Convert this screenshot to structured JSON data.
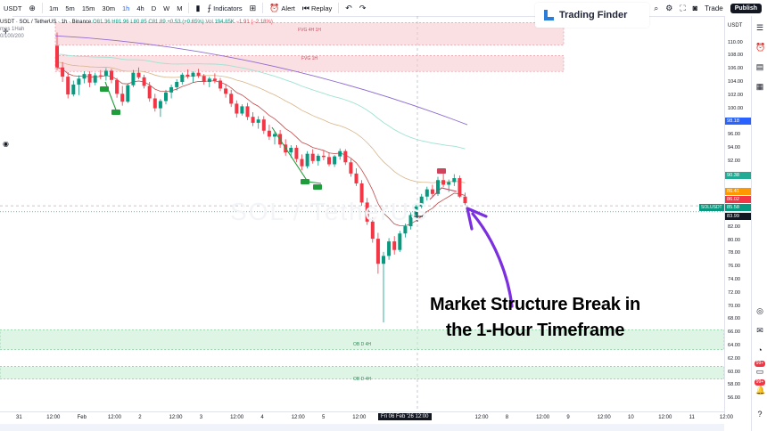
{
  "topbar": {
    "intervals": [
      "1m",
      "5m",
      "15m",
      "30m",
      "1h",
      "4h",
      "D",
      "W",
      "M"
    ],
    "indicators_label": "Indicators",
    "alert_label": "Alert",
    "replay_label": "Replay",
    "trade_label": "Trade",
    "publish_label": "Publish",
    "symbol_short": "USDT"
  },
  "brand": {
    "name": "Trading Finder"
  },
  "legend": {
    "symbol": "USDT · SOL / TetherUS · 1h · Binance",
    "open": "O81.36",
    "high": "H81.96",
    "low": "L80.85",
    "close": "C81.89",
    "change": "+0.53 (+0.65%)",
    "volume_label": "Vol",
    "volume_value": "194.85K",
    "volume_change": "−1.91 (−2.18%)",
    "sub1": "mes 1Hah",
    "sub2": "0/100/200"
  },
  "watermark": "SOL / TetherUS",
  "zones": [
    {
      "label": "FVG 4H 1H",
      "kind": "fvg"
    },
    {
      "label": "FVG 1H",
      "kind": "fvg"
    },
    {
      "label": "OB D 4H",
      "kind": "ob"
    },
    {
      "label": "OB D 4H",
      "kind": "ob"
    }
  ],
  "price_axis": {
    "ticks": [
      "110.00",
      "108.00",
      "106.00",
      "104.00",
      "102.00",
      "100.00",
      "96.00",
      "94.00",
      "92.00",
      "90.00",
      "82.00",
      "80.00",
      "78.00",
      "76.00",
      "74.00",
      "72.00",
      "70.00",
      "68.00",
      "66.00",
      "64.00",
      "62.00",
      "60.00",
      "58.00",
      "56.00"
    ],
    "badge_blue": "98.18",
    "badge_green_top": "90.38",
    "badge_orange": "86.41",
    "badge_red": "86.02",
    "badge_green": "85.58",
    "badge_dark": "83.99",
    "badge_symbol": "SOLUSDT"
  },
  "time_axis": {
    "ticks": [
      "31",
      "12:00",
      "Feb",
      "12:00",
      "2",
      "12:00",
      "3",
      "12:00",
      "4",
      "12:00",
      "5",
      "12:00",
      "6",
      "12:00",
      "7",
      "12:00",
      "8",
      "12:00",
      "9",
      "12:00",
      "10",
      "12:00",
      "11",
      "12:00"
    ],
    "current": "Fri 06 Feb '26   12:00"
  },
  "annotation": {
    "line1": "Market Structure Break in",
    "line2": "the 1-Hour Timeframe"
  },
  "right_badges": [
    "99+",
    "99+"
  ],
  "colors": {
    "up": "#089981",
    "down": "#f23645",
    "accent_purple": "#7b2fe0",
    "ema_purple": "#8e6bd1",
    "ema_teal": "#9ee2d2",
    "ema_tan": "#d8b58a",
    "ema_red": "#c24a4a",
    "fvg": "#f7c6cc",
    "ob": "#c8ecd2"
  },
  "chart_data": {
    "type": "candlestick",
    "y_range": [
      54,
      114
    ],
    "price_ticks": [
      110,
      108,
      106,
      104,
      102,
      100,
      96,
      94,
      92,
      90,
      82,
      80,
      78,
      76,
      74,
      72,
      70,
      68,
      66,
      64,
      62,
      60,
      58,
      56
    ],
    "x_start_label": "31",
    "x_end_label": "11",
    "candles": [
      [
        109.5,
        111.5,
        105.8,
        106.2
      ],
      [
        106.2,
        107.0,
        104.0,
        104.8
      ],
      [
        104.8,
        105.5,
        101.5,
        102.1
      ],
      [
        102.1,
        104.2,
        101.8,
        103.6
      ],
      [
        103.6,
        105.0,
        102.0,
        104.5
      ],
      [
        104.5,
        105.6,
        103.8,
        105.2
      ],
      [
        105.2,
        105.6,
        103.2,
        103.9
      ],
      [
        103.9,
        105.4,
        103.5,
        105.0
      ],
      [
        105.0,
        105.8,
        104.4,
        104.9
      ],
      [
        104.9,
        106.1,
        104.2,
        105.7
      ],
      [
        105.7,
        106.0,
        103.8,
        104.3
      ],
      [
        104.3,
        104.6,
        101.6,
        102.2
      ],
      [
        102.2,
        103.4,
        100.4,
        101.0
      ],
      [
        101.0,
        103.8,
        100.8,
        103.5
      ],
      [
        103.5,
        105.8,
        103.2,
        105.4
      ],
      [
        105.4,
        106.2,
        104.4,
        104.7
      ],
      [
        104.7,
        105.1,
        103.0,
        103.4
      ],
      [
        103.4,
        104.0,
        101.0,
        101.5
      ],
      [
        101.5,
        102.2,
        99.5,
        100.0
      ],
      [
        100.0,
        101.4,
        98.7,
        101.1
      ],
      [
        101.1,
        102.8,
        100.6,
        102.4
      ],
      [
        102.4,
        103.6,
        101.5,
        103.2
      ],
      [
        103.2,
        104.4,
        102.7,
        104.0
      ],
      [
        104.0,
        105.4,
        103.6,
        105.1
      ],
      [
        105.1,
        105.9,
        104.5,
        104.8
      ],
      [
        104.8,
        105.6,
        103.9,
        105.4
      ],
      [
        105.4,
        106.0,
        104.6,
        104.9
      ],
      [
        104.9,
        105.2,
        103.6,
        104.0
      ],
      [
        104.0,
        104.8,
        103.2,
        104.5
      ],
      [
        104.5,
        105.3,
        103.8,
        104.2
      ],
      [
        104.2,
        104.6,
        102.6,
        103.0
      ],
      [
        103.0,
        103.6,
        101.6,
        102.2
      ],
      [
        102.2,
        102.8,
        100.2,
        100.7
      ],
      [
        100.7,
        101.2,
        98.6,
        99.2
      ],
      [
        99.2,
        100.6,
        98.9,
        100.3
      ],
      [
        100.3,
        100.8,
        98.2,
        98.7
      ],
      [
        98.7,
        99.4,
        97.3,
        97.8
      ],
      [
        97.8,
        98.8,
        96.9,
        98.3
      ],
      [
        98.3,
        98.8,
        96.1,
        96.6
      ],
      [
        96.6,
        97.5,
        95.2,
        95.7
      ],
      [
        95.7,
        96.5,
        94.5,
        96.1
      ],
      [
        96.1,
        96.7,
        94.0,
        94.5
      ],
      [
        94.5,
        95.3,
        92.8,
        93.3
      ],
      [
        93.3,
        94.4,
        92.5,
        94.0
      ],
      [
        94.0,
        94.4,
        91.8,
        92.3
      ],
      [
        92.3,
        93.0,
        90.6,
        91.2
      ],
      [
        91.2,
        93.5,
        90.9,
        93.1
      ],
      [
        93.1,
        93.8,
        91.6,
        92.0
      ],
      [
        92.0,
        93.1,
        91.3,
        92.8
      ],
      [
        92.8,
        93.6,
        92.1,
        92.6
      ],
      [
        92.6,
        93.3,
        91.2,
        91.5
      ],
      [
        91.5,
        92.9,
        91.1,
        92.7
      ],
      [
        92.7,
        93.9,
        92.2,
        93.5
      ],
      [
        93.5,
        93.8,
        91.4,
        91.8
      ],
      [
        91.8,
        92.3,
        89.6,
        90.1
      ],
      [
        90.1,
        90.9,
        88.2,
        88.6
      ],
      [
        88.6,
        89.1,
        85.2,
        85.7
      ],
      [
        85.7,
        86.4,
        82.3,
        82.8
      ],
      [
        82.8,
        83.4,
        79.6,
        80.2
      ],
      [
        80.2,
        81.1,
        74.9,
        76.4
      ],
      [
        76.4,
        78.2,
        67.5,
        77.6
      ],
      [
        77.6,
        80.3,
        77.0,
        79.8
      ],
      [
        79.8,
        80.6,
        77.8,
        78.5
      ],
      [
        78.5,
        81.4,
        78.2,
        81.0
      ],
      [
        81.0,
        82.5,
        80.4,
        82.1
      ],
      [
        82.1,
        84.2,
        81.6,
        83.8
      ],
      [
        83.8,
        85.6,
        83.4,
        85.1
      ],
      [
        85.1,
        87.0,
        84.8,
        86.6
      ],
      [
        86.6,
        88.1,
        86.0,
        87.7
      ],
      [
        87.7,
        88.4,
        86.6,
        87.0
      ],
      [
        87.0,
        89.6,
        86.7,
        89.1
      ],
      [
        89.1,
        90.3,
        88.0,
        88.4
      ],
      [
        88.4,
        89.2,
        87.3,
        88.8
      ],
      [
        88.8,
        90.0,
        88.2,
        89.4
      ],
      [
        89.4,
        89.8,
        86.4,
        86.6
      ],
      [
        86.6,
        87.2,
        85.3,
        85.6
      ]
    ]
  }
}
